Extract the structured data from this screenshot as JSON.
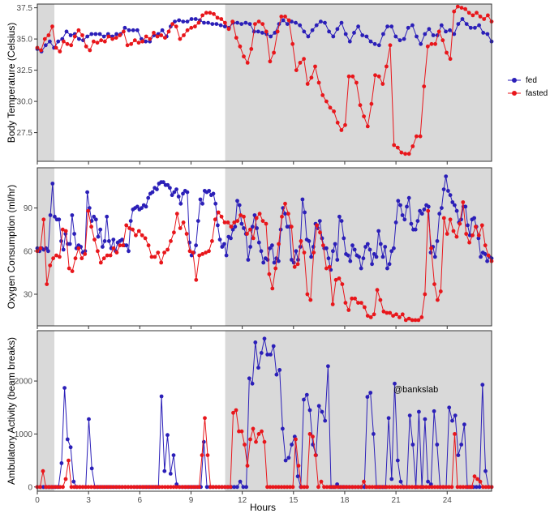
{
  "chart_data": {
    "type": "line",
    "xlabel": "Hours",
    "x_ticks": [
      0,
      3,
      6,
      9,
      12,
      15,
      18,
      21,
      24
    ],
    "xlim": [
      0,
      26.6
    ],
    "dark_periods": [
      [
        0,
        1
      ],
      [
        11,
        26.6
      ]
    ],
    "legend": {
      "position": "right",
      "entries": [
        {
          "name": "fed",
          "color": "#2b1fb8"
        },
        {
          "name": "fasted",
          "color": "#e8161b"
        }
      ]
    },
    "annotation": "@bankslab",
    "panels": [
      {
        "ylabel": "Body Temperature (Celsius)",
        "ylim": [
          25.2,
          37.8
        ],
        "y_ticks": [
          27.5,
          30.0,
          32.5,
          35.0,
          37.5
        ],
        "y_tick_labels": [
          "27.5",
          "30.0",
          "32.5",
          "35.0",
          "37.5"
        ],
        "series": [
          {
            "name": "fed",
            "color": "#2b1fb8",
            "values": [
              34.2,
              34.0,
              34.5,
              34.8,
              34.3,
              34.8,
              35.0,
              35.6,
              35.3,
              35.4,
              35.0,
              34.9,
              35.2,
              35.4,
              35.4,
              35.4,
              35.2,
              35.4,
              35.2,
              35.4,
              35.4,
              35.9,
              35.7,
              35.7,
              35.7,
              35.0,
              34.8,
              34.8,
              35.3,
              35.4,
              35.7,
              35.2,
              36.0,
              36.4,
              36.5,
              36.4,
              36.4,
              36.6,
              36.6,
              36.5,
              36.3,
              36.3,
              36.2,
              36.2,
              36.1,
              36.0,
              35.9,
              36.3,
              36.3,
              36.2,
              36.3,
              36.2,
              35.6,
              35.6,
              35.5,
              35.4,
              35.2,
              35.5,
              36.2,
              36.5,
              36.2,
              36.4,
              36.3,
              36.1,
              35.6,
              35.2,
              35.7,
              36.1,
              36.4,
              36.3,
              35.6,
              35.2,
              35.8,
              36.3,
              35.4,
              34.8,
              35.5,
              36.0,
              35.3,
              35.2,
              34.8,
              34.6,
              34.5,
              35.4,
              36.0,
              36.0,
              35.2,
              34.9,
              35.0,
              35.9,
              36.1,
              35.2,
              34.6,
              35.4,
              35.8,
              35.3,
              35.3,
              36.1,
              35.6,
              35.7,
              35.4,
              36.2,
              36.6,
              36.2,
              35.9,
              35.9,
              36.1,
              35.5,
              35.4,
              34.8
            ]
          },
          {
            "name": "fasted",
            "color": "#e8161b",
            "values": [
              34.3,
              34.1,
              35.0,
              35.3,
              36.0,
              34.3,
              34.0,
              34.8,
              34.6,
              34.5,
              35.2,
              35.7,
              35.3,
              34.4,
              34.1,
              34.8,
              34.7,
              34.9,
              34.8,
              35.2,
              35.0,
              35.1,
              35.3,
              35.6,
              34.5,
              34.6,
              34.9,
              34.7,
              34.8,
              35.2,
              35.0,
              35.5,
              35.2,
              35.3,
              35.1,
              35.6,
              36.2,
              36.0,
              35.0,
              35.3,
              35.7,
              35.9,
              36.0,
              36.3,
              36.9,
              37.1,
              37.1,
              37.0,
              36.7,
              36.6,
              36.3,
              35.8,
              36.4,
              35.1,
              34.4,
              33.6,
              33.1,
              34.2,
              36.2,
              36.4,
              36.2,
              35.6,
              33.2,
              33.9,
              35.6,
              36.8,
              36.8,
              36.5,
              34.6,
              32.5,
              33.1,
              33.4,
              31.4,
              31.9,
              32.8,
              31.5,
              30.5,
              30.0,
              29.5,
              29.2,
              28.3,
              27.7,
              28.1,
              32.0,
              32.0,
              31.5,
              29.7,
              28.8,
              28.0,
              29.8,
              32.1,
              32.0,
              31.4,
              32.8,
              34.5,
              26.5,
              26.3,
              25.9,
              25.8,
              25.8,
              26.4,
              27.2,
              27.2,
              31.2,
              34.4,
              34.6,
              34.6,
              35.6,
              34.9,
              33.9,
              33.4,
              37.2,
              37.6,
              37.5,
              37.4,
              37.1,
              36.9,
              37.1,
              36.8,
              36.6,
              36.9,
              36.4
            ]
          }
        ]
      },
      {
        "ylabel": "Oxygen Consumption (ml/hr)",
        "ylim": [
          8,
          118
        ],
        "y_ticks": [
          30,
          60,
          90
        ],
        "y_tick_labels": [
          "30",
          "60",
          "90"
        ],
        "series": [
          {
            "name": "fed",
            "color": "#2b1fb8",
            "values": [
              62,
              60,
              62,
              61,
              62,
              60,
              85,
              107,
              84,
              82,
              82,
              67,
              61,
              72,
              65,
              65,
              85,
              72,
              62,
              64,
              63,
              59,
              60,
              101,
              90,
              81,
              84,
              82,
              70,
              75,
              63,
              67,
              84,
              67,
              62,
              68,
              60,
              66,
              67,
              68,
              64,
              64,
              60,
              81,
              89,
              90,
              91,
              89,
              90,
              92,
              91,
              97,
              100,
              101,
              104,
              103,
              107,
              108,
              108,
              106,
              106,
              104,
              99,
              101,
              103,
              98,
              93,
              100,
              102,
              101,
              66,
              57,
              59,
              64,
              81,
              96,
              93,
              102,
              101,
              102,
              99,
              100,
              93,
              78,
              68,
              63,
              65,
              57,
              70,
              69,
              75,
              77,
              95,
              92,
              79,
              76,
              72,
              54,
              63,
              77,
              85,
              76,
              66,
              60,
              52,
              55,
              54,
              62,
              64,
              52,
              55,
              53,
              75,
              90,
              86,
              77,
              77,
              54,
              52,
              60,
              54,
              63,
              96,
              87,
              68,
              67,
              56,
              63,
              79,
              76,
              81,
              69,
              62,
              62,
              55,
              47,
              60,
              65,
              54,
              84,
              81,
              69,
              58,
              57,
              53,
              64,
              61,
              57,
              56,
              48,
              55,
              63,
              65,
              61,
              51,
              58,
              56,
              74,
              65,
              56,
              63,
              48,
              51,
              60,
              62,
              80,
              95,
              92,
              85,
              82,
              91,
              97,
              79,
              75,
              75,
              81,
              88,
              86,
              89,
              92,
              91,
              59,
              63,
              56,
              67,
              86,
              90,
              103,
              112,
              102,
              99,
              94,
              92,
              88,
              80,
              82,
              91,
              91,
              78,
              71,
              82,
              83,
              77,
              69,
              56,
              59,
              58,
              53,
              56,
              55
            ]
          },
          {
            "name": "fasted",
            "color": "#e8161b",
            "values": [
              60,
              62,
              82,
              37,
              50,
              55,
              57,
              56,
              75,
              74,
              48,
              46,
              55,
              62,
              55,
              58,
              88,
              77,
              68,
              60,
              52,
              55,
              57,
              57,
              62,
              59,
              64,
              64,
              78,
              76,
              75,
              71,
              74,
              71,
              69,
              64,
              56,
              56,
              59,
              52,
              59,
              61,
              67,
              73,
              86,
              76,
              80,
              72,
              60,
              59,
              40,
              57,
              58,
              59,
              60,
              67,
              82,
              87,
              84,
              80,
              80,
              77,
              80,
              81,
              85,
              84,
              72,
              75,
              69,
              83,
              86,
              81,
              79,
              44,
              34,
              48,
              65,
              84,
              93,
              86,
              77,
              49,
              51,
              67,
              59,
              30,
              26,
              59,
              78,
              73,
              64,
              48,
              49,
              23,
              40,
              41,
              37,
              24,
              19,
              27,
              27,
              24,
              24,
              21,
              15,
              14,
              16,
              33,
              26,
              18,
              17,
              17,
              15,
              16,
              14,
              16,
              12,
              13,
              12,
              12,
              12,
              14,
              30,
              88,
              62,
              37,
              26,
              32,
              83,
              72,
              82,
              74,
              70,
              79,
              94,
              72,
              66,
              71,
              77,
              71,
              78,
              64,
              57,
              53
            ]
          }
        ]
      },
      {
        "ylabel": "Ambulatory Activity (beam breaks)",
        "ylim": [
          -80,
          2950
        ],
        "y_ticks": [
          0,
          1000,
          2000
        ],
        "y_tick_labels": [
          "0",
          "1000",
          "2000"
        ],
        "series": [
          {
            "name": "fed",
            "color": "#2b1fb8",
            "values": [
              0,
              0,
              0,
              0,
              0,
              0,
              0,
              0,
              450,
              1870,
              900,
              750,
              100,
              0,
              0,
              0,
              0,
              1280,
              350,
              0,
              0,
              0,
              0,
              0,
              0,
              0,
              0,
              0,
              0,
              0,
              0,
              0,
              0,
              0,
              0,
              0,
              0,
              0,
              0,
              0,
              0,
              1710,
              300,
              980,
              250,
              600,
              50,
              0,
              0,
              0,
              0,
              0,
              0,
              0,
              0,
              850,
              0,
              0,
              0,
              0,
              0,
              0,
              0,
              0,
              0,
              0,
              0,
              100,
              0,
              0,
              2050,
              1950,
              2730,
              2250,
              2530,
              2800,
              2500,
              2500,
              2660,
              2120,
              2210,
              1100,
              500,
              550,
              800,
              950,
              200,
              0,
              1650,
              1740,
              1450,
              800,
              600,
              1530,
              1420,
              1250,
              2280,
              0,
              0,
              50,
              0,
              0,
              0,
              0,
              0,
              0,
              0,
              0,
              0,
              1700,
              1780,
              1000,
              0,
              0,
              0,
              0,
              1300,
              150,
              1950,
              500,
              100,
              0,
              0,
              1350,
              800,
              0,
              1420,
              0,
              1280,
              100,
              50,
              1430,
              800,
              0,
              0,
              0,
              1500,
              1250,
              1350,
              600,
              800,
              1180,
              0,
              0,
              0,
              0,
              0,
              1930,
              300,
              0,
              0
            ]
          },
          {
            "name": "fasted",
            "color": "#e8161b",
            "values": [
              0,
              0,
              300,
              0,
              0,
              0,
              0,
              0,
              0,
              0,
              150,
              500,
              0,
              0,
              0,
              0,
              0,
              0,
              0,
              0,
              0,
              0,
              0,
              0,
              0,
              0,
              0,
              0,
              0,
              0,
              0,
              0,
              0,
              0,
              0,
              0,
              0,
              0,
              0,
              0,
              0,
              0,
              0,
              0,
              0,
              0,
              0,
              0,
              0,
              0,
              0,
              0,
              0,
              0,
              0,
              0,
              0,
              0,
              600,
              1300,
              600,
              0,
              0,
              0,
              0,
              0,
              0,
              0,
              0,
              1400,
              1450,
              1050,
              1050,
              800,
              400,
              900,
              1100,
              850,
              1000,
              1050,
              850,
              0,
              0,
              0,
              0,
              0,
              0,
              0,
              0,
              0,
              0,
              900,
              400,
              0,
              0,
              0,
              1000,
              950,
              600,
              0,
              100,
              0,
              0,
              0,
              0,
              0,
              0,
              0,
              0,
              0,
              0,
              0,
              0,
              0,
              0,
              100,
              0,
              0,
              0,
              0,
              0,
              0,
              0,
              0,
              0,
              0,
              0,
              0,
              0,
              0,
              0,
              0,
              0,
              0,
              0,
              0,
              0,
              0,
              0,
              0,
              0,
              0,
              0,
              0,
              0,
              0,
              0,
              1000,
              0,
              0,
              0,
              0,
              0,
              0,
              200,
              150,
              100,
              0,
              0,
              0,
              0
            ]
          }
        ]
      }
    ]
  }
}
